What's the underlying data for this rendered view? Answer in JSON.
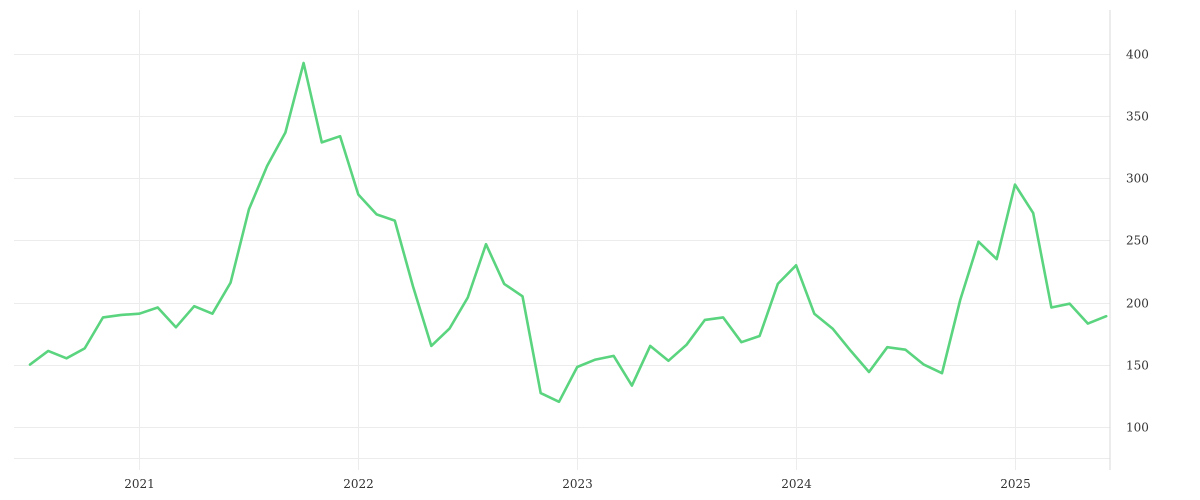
{
  "chart_data": {
    "type": "line",
    "title": "",
    "xlabel": "",
    "ylabel": "",
    "grid": true,
    "line_color": "#5ad47e",
    "x_ticks": [
      "2021",
      "2022",
      "2023",
      "2024",
      "2025"
    ],
    "y_ticks": [
      100,
      150,
      200,
      250,
      300,
      350,
      400
    ],
    "xlim": [
      "2020-07",
      "2025-06"
    ],
    "ylim": [
      75,
      425
    ],
    "series": [
      {
        "x": [
          "2020-07",
          "2020-08",
          "2020-09",
          "2020-10",
          "2020-11",
          "2020-12",
          "2021-01",
          "2021-02",
          "2021-03",
          "2021-04",
          "2021-05",
          "2021-06",
          "2021-07",
          "2021-08",
          "2021-09",
          "2021-10",
          "2021-11",
          "2021-12",
          "2022-01",
          "2022-02",
          "2022-03",
          "2022-04",
          "2022-05",
          "2022-06",
          "2022-07",
          "2022-08",
          "2022-09",
          "2022-10",
          "2022-11",
          "2022-12",
          "2023-01",
          "2023-02",
          "2023-03",
          "2023-04",
          "2023-05",
          "2023-06",
          "2023-07",
          "2023-08",
          "2023-09",
          "2023-10",
          "2023-11",
          "2023-12",
          "2024-01",
          "2024-02",
          "2024-03",
          "2024-04",
          "2024-05",
          "2024-06",
          "2024-07",
          "2024-08",
          "2024-09",
          "2024-10",
          "2024-11",
          "2024-12",
          "2025-01",
          "2025-02",
          "2025-03",
          "2025-04",
          "2025-05",
          "2025-06"
        ],
        "values": [
          150,
          161,
          155,
          163,
          188,
          190,
          191,
          196,
          180,
          197,
          191,
          216,
          275,
          310,
          337,
          393,
          329,
          334,
          287,
          271,
          266,
          213,
          165,
          179,
          204,
          247,
          215,
          205,
          127,
          120,
          148,
          154,
          157,
          133,
          165,
          153,
          166,
          186,
          188,
          168,
          173,
          215,
          230,
          191,
          179,
          161,
          144,
          164,
          162,
          150,
          143,
          202,
          249,
          235,
          295,
          272,
          196,
          199,
          183,
          189
        ]
      }
    ]
  }
}
